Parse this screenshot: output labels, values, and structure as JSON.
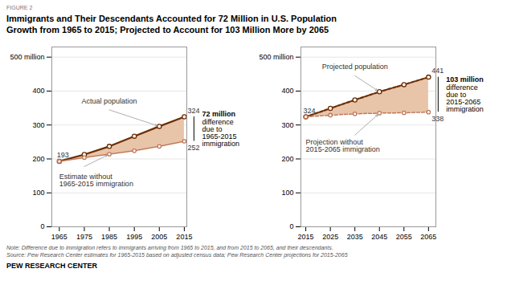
{
  "chart_data": [
    {
      "type": "line",
      "figure_label": "FIGURE 2",
      "title": "Immigrants and Their Descendants Accounted for 72 Million in U.S. Population\nGrowth from 1965 to 2015; Projected to Account for 103 Million More by 2065",
      "notes": [
        "Note: Difference due to immigration refers to immigrants arriving from 1965 to 2015, and from 2015 to 2065, and their descendants.",
        "Source: Pew Research Center estimates for 1965-2015 based on adjusted census data; Pew Research Center projections for 2015-2065"
      ],
      "footer": "PEW RESEARCH CENTER",
      "x": [
        1965,
        1975,
        1985,
        1995,
        2005,
        2015
      ],
      "xlim": [
        1962,
        2016
      ],
      "xticks": [
        1965,
        1975,
        1985,
        1995,
        2005,
        2015
      ],
      "ylim": [
        0,
        530
      ],
      "yticks": [
        0,
        100,
        200,
        300,
        400,
        {
          "value": 500,
          "label": "500 million"
        }
      ],
      "grid": true,
      "color": "#E8C4A8",
      "series": [
        {
          "name": "Actual population",
          "color": "#6B2D00",
          "line_style": "solid",
          "marker": "circle",
          "values": [
            193,
            213,
            237,
            267,
            296,
            324
          ],
          "value_labels": [
            "193",
            null,
            null,
            null,
            null,
            "324"
          ]
        },
        {
          "name": "Estimate without\n1965-2015 immigration",
          "color": "#C07858",
          "line_style": "solid",
          "marker": "circle",
          "values": [
            193,
            204,
            214,
            224,
            237,
            252
          ],
          "value_labels": [
            null,
            null,
            null,
            null,
            null,
            "252"
          ]
        }
      ],
      "difference_title": "72 million",
      "difference_text": "difference\ndue to\n1965-2015\nimmigration"
    },
    {
      "type": "line",
      "x": [
        2015,
        2025,
        2035,
        2045,
        2055,
        2065
      ],
      "xlim": [
        2013,
        2068
      ],
      "xticks": [
        2015,
        2025,
        2035,
        2045,
        2055,
        2065
      ],
      "ylim": [
        0,
        530
      ],
      "yticks": [
        0,
        100,
        200,
        300,
        400,
        {
          "value": 500,
          "label": "500 million"
        }
      ],
      "grid": true,
      "color": "#E8C4A8",
      "series": [
        {
          "name": "Projected population",
          "color": "#6B2D00",
          "line_style": "dashed",
          "marker": "circle",
          "values": [
            324,
            349,
            374,
            398,
            419,
            441
          ],
          "value_labels": [
            "324",
            null,
            null,
            null,
            null,
            "441"
          ]
        },
        {
          "name": "Projection without\n2015-2065 immigration",
          "color": "#C07858",
          "line_style": "dashed",
          "marker": "circle",
          "values": [
            324,
            329,
            333,
            335,
            336,
            338
          ],
          "value_labels": [
            null,
            null,
            null,
            null,
            null,
            "338"
          ]
        }
      ],
      "difference_title": "103 million",
      "difference_text": "difference\ndue to\n2015-2065\nimmigration"
    }
  ]
}
